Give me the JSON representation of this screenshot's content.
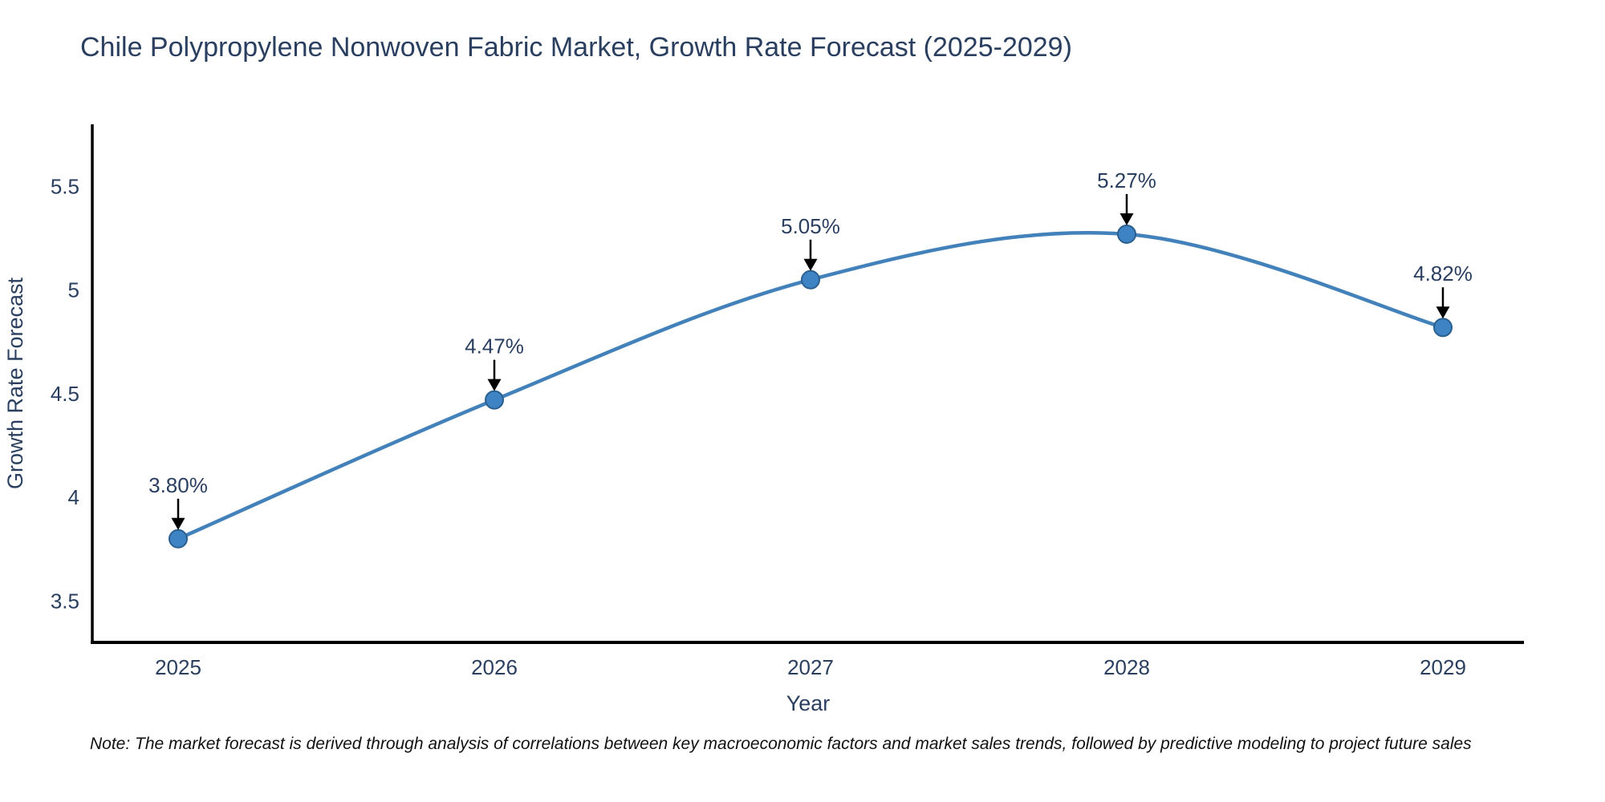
{
  "header": {
    "title": "Chile Polypropylene Nonwoven Fabric Market, Growth Rate Forecast (2025-2029)"
  },
  "chart_data": {
    "type": "line",
    "line_shape": "spline",
    "title": "Chile Polypropylene Nonwoven Fabric Market, Growth Rate Forecast (2025-2029)",
    "categories": [
      "2025",
      "2026",
      "2027",
      "2028",
      "2029"
    ],
    "series": [
      {
        "name": "Growth Rate Forecast",
        "values": [
          3.8,
          4.47,
          5.05,
          5.27,
          4.82
        ]
      }
    ],
    "point_labels": [
      "3.80%",
      "4.47%",
      "5.05%",
      "5.27%",
      "4.82%"
    ],
    "xlabel": "Year",
    "ylabel": "Growth Rate Forecast",
    "y_ticks": [
      3.5,
      4,
      4.5,
      5,
      5.5
    ],
    "y_tick_labels": [
      "3.5",
      "4",
      "4.5",
      "5",
      "5.5"
    ],
    "ylim": [
      3.3,
      5.8
    ],
    "grid": false,
    "legend": "none",
    "colors": {
      "line": "#4281b9",
      "marker_fill": "#3e83c4",
      "marker_edge": "#2a5f8f",
      "axis": "#000000",
      "text": "#2a3f5f",
      "annotation_arrow": "#000000"
    }
  },
  "footnote": {
    "text": "Note: The market forecast is derived through analysis of correlations between key macroeconomic factors and market sales trends, followed by predictive modeling to project future sales"
  }
}
